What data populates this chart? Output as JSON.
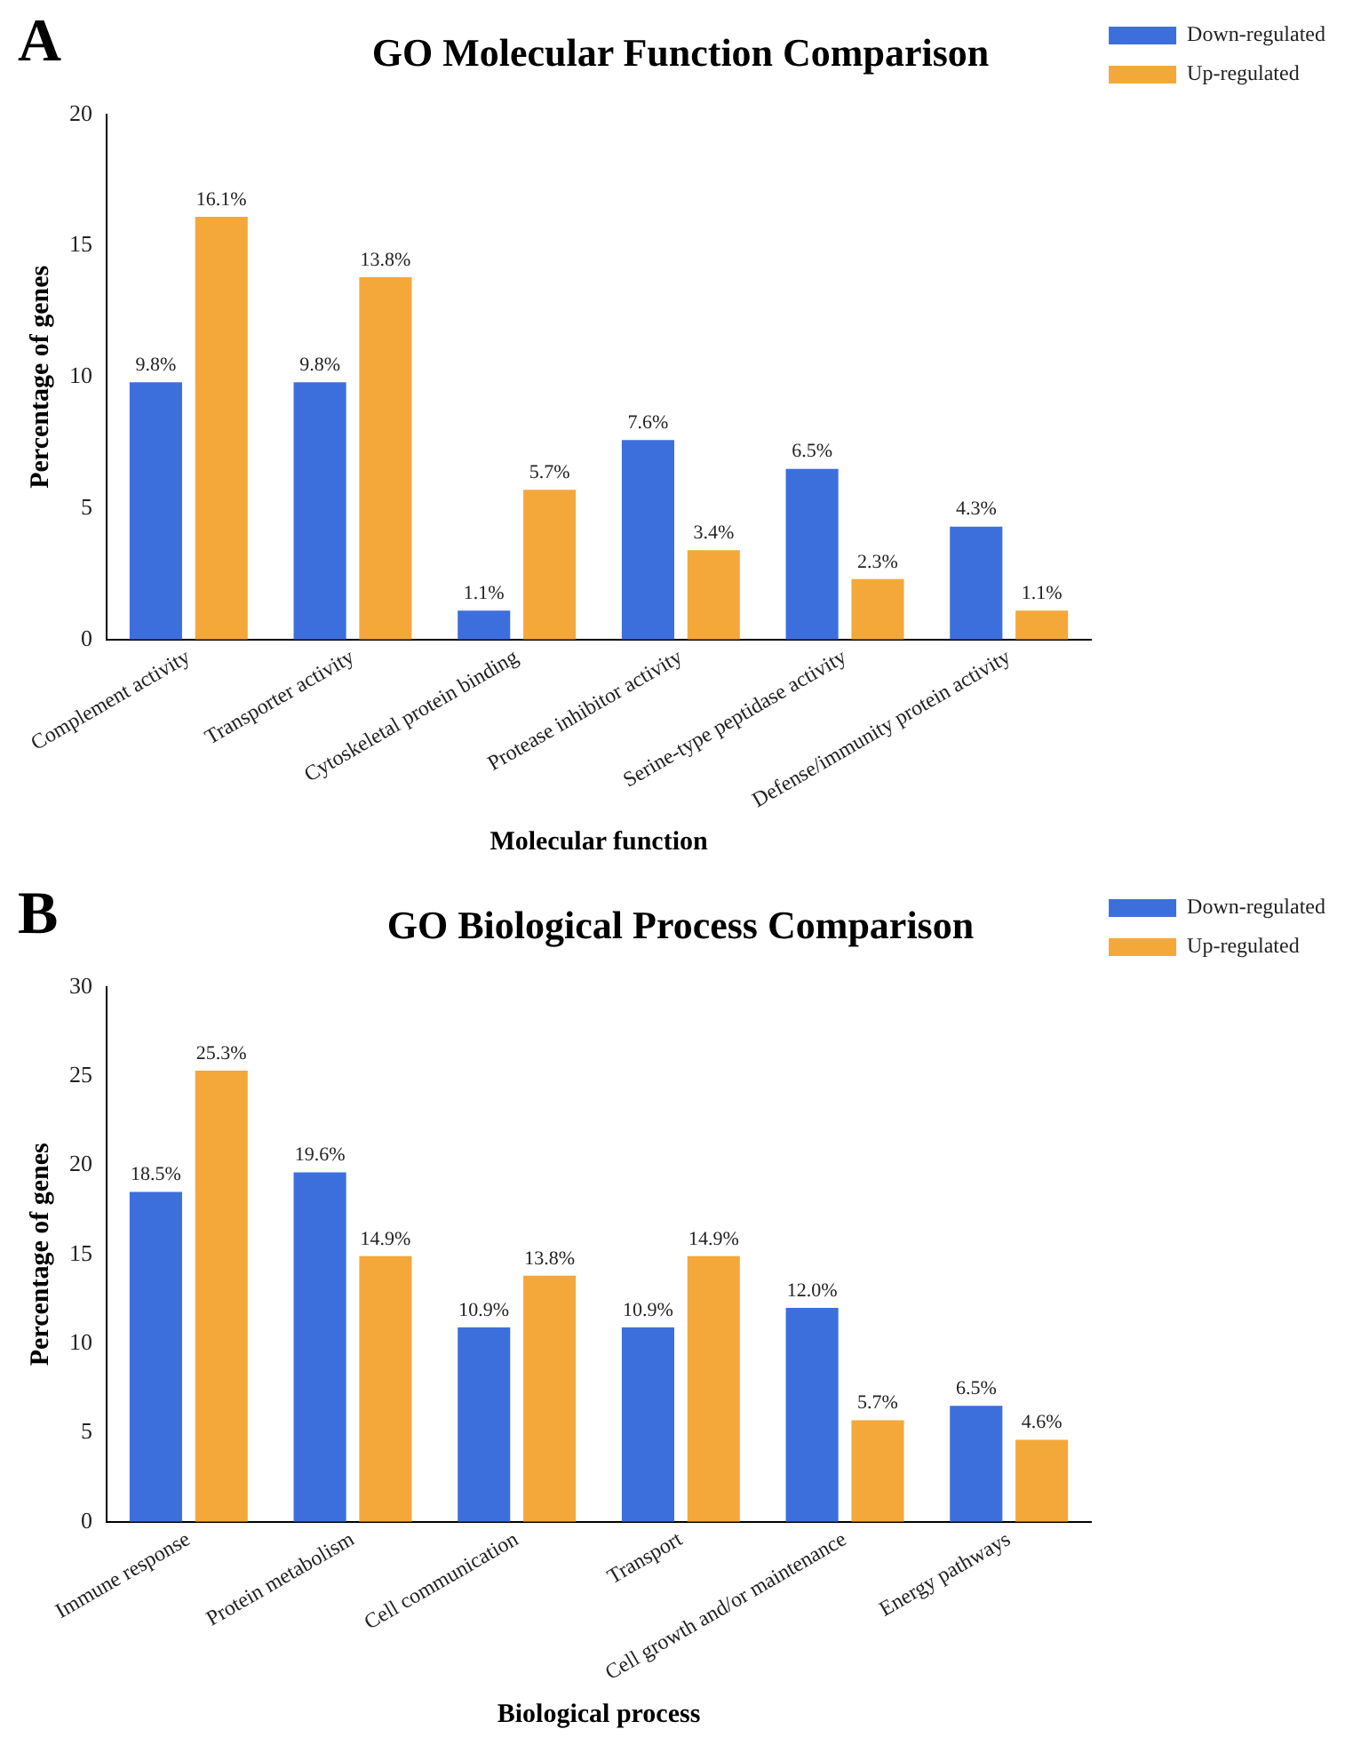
{
  "chart_data": [
    {
      "type": "bar",
      "title": "GO Molecular Function Comparison",
      "annotations": [
        "A"
      ],
      "xlabel": "Molecular function",
      "ylabel": "Percentage of genes",
      "categories": [
        "Complement activity",
        "Transporter activity",
        "Cytoskeletal protein binding",
        "Protease inhibitor activity",
        "Serine-type peptidase activity",
        "Defense/immunity protein activity"
      ],
      "ylim": [
        0,
        20
      ],
      "yticks": [
        0,
        5,
        10,
        15,
        20
      ],
      "legend": "top right",
      "series": [
        {
          "name": "Down-regulated",
          "color": "#3d6fdc",
          "values": [
            9.8,
            9.8,
            1.1,
            7.6,
            6.5,
            4.3
          ],
          "value_labels": [
            "9.8%",
            "9.8%",
            "1.1%",
            "7.6%",
            "6.5%",
            "4.3%"
          ]
        },
        {
          "name": "Up-regulated",
          "color": "#f5a83a",
          "values": [
            16.1,
            13.8,
            5.7,
            3.4,
            2.3,
            1.1
          ],
          "value_labels": [
            "16.1%",
            "13.8%",
            "5.7%",
            "3.4%",
            "2.3%",
            "1.1%"
          ]
        }
      ]
    },
    {
      "type": "bar",
      "title": "GO Biological Process Comparison",
      "annotations": [
        "B"
      ],
      "xlabel": "Biological process",
      "ylabel": "Percentage of genes",
      "categories": [
        "Immune response",
        "Protein metabolism",
        "Cell communication",
        "Transport",
        "Cell growth and/or maintenance",
        "Energy pathways"
      ],
      "ylim": [
        0,
        30
      ],
      "yticks": [
        0,
        5,
        10,
        15,
        20,
        25,
        30
      ],
      "legend": "top right",
      "series": [
        {
          "name": "Down-regulated",
          "color": "#3d6fdc",
          "values": [
            18.5,
            19.6,
            10.9,
            10.9,
            12.0,
            6.5
          ],
          "value_labels": [
            "18.5%",
            "19.6%",
            "10.9%",
            "10.9%",
            "12.0%",
            "6.5%"
          ]
        },
        {
          "name": "Up-regulated",
          "color": "#f5a83a",
          "values": [
            25.3,
            14.9,
            13.8,
            14.9,
            5.7,
            4.6
          ],
          "value_labels": [
            "25.3%",
            "14.9%",
            "13.8%",
            "14.9%",
            "5.7%",
            "4.6%"
          ]
        }
      ]
    }
  ]
}
